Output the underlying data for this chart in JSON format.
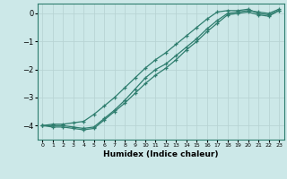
{
  "title": "",
  "xlabel": "Humidex (Indice chaleur)",
  "ylabel": "",
  "bg_color": "#cce8e8",
  "grid_color": "#b8d4d4",
  "line_color": "#2e7d6e",
  "xlim": [
    -0.5,
    23.5
  ],
  "ylim": [
    -4.5,
    0.35
  ],
  "yticks": [
    0,
    -1,
    -2,
    -3,
    -4
  ],
  "xticks": [
    0,
    1,
    2,
    3,
    4,
    5,
    6,
    7,
    8,
    9,
    10,
    11,
    12,
    13,
    14,
    15,
    16,
    17,
    18,
    19,
    20,
    21,
    22,
    23
  ],
  "line1_x": [
    0,
    1,
    2,
    3,
    4,
    5,
    6,
    7,
    8,
    9,
    10,
    11,
    12,
    13,
    14,
    15,
    16,
    17,
    18,
    19,
    20,
    21,
    22,
    23
  ],
  "line1_y": [
    -4.0,
    -4.05,
    -4.05,
    -4.1,
    -4.15,
    -4.1,
    -3.8,
    -3.5,
    -3.2,
    -2.85,
    -2.5,
    -2.2,
    -1.95,
    -1.65,
    -1.3,
    -1.0,
    -0.65,
    -0.35,
    -0.05,
    0.0,
    0.05,
    -0.05,
    -0.1,
    0.1
  ],
  "line2_x": [
    0,
    1,
    2,
    3,
    4,
    5,
    6,
    7,
    8,
    9,
    10,
    11,
    12,
    13,
    14,
    15,
    16,
    17,
    18,
    19,
    20,
    21,
    22,
    23
  ],
  "line2_y": [
    -4.0,
    -4.0,
    -4.0,
    -4.05,
    -4.1,
    -4.05,
    -3.75,
    -3.45,
    -3.1,
    -2.7,
    -2.3,
    -2.0,
    -1.8,
    -1.5,
    -1.2,
    -0.9,
    -0.55,
    -0.25,
    0.0,
    0.05,
    0.1,
    0.05,
    0.0,
    0.15
  ],
  "line3_x": [
    0,
    1,
    2,
    3,
    4,
    5,
    6,
    7,
    8,
    9,
    10,
    11,
    12,
    13,
    14,
    15,
    16,
    17,
    18,
    19,
    20,
    21,
    22,
    23
  ],
  "line3_y": [
    -4.0,
    -3.95,
    -3.95,
    -3.9,
    -3.85,
    -3.6,
    -3.3,
    -3.0,
    -2.65,
    -2.3,
    -1.95,
    -1.65,
    -1.4,
    -1.1,
    -0.8,
    -0.5,
    -0.2,
    0.05,
    0.1,
    0.1,
    0.15,
    0.0,
    -0.05,
    0.1
  ]
}
